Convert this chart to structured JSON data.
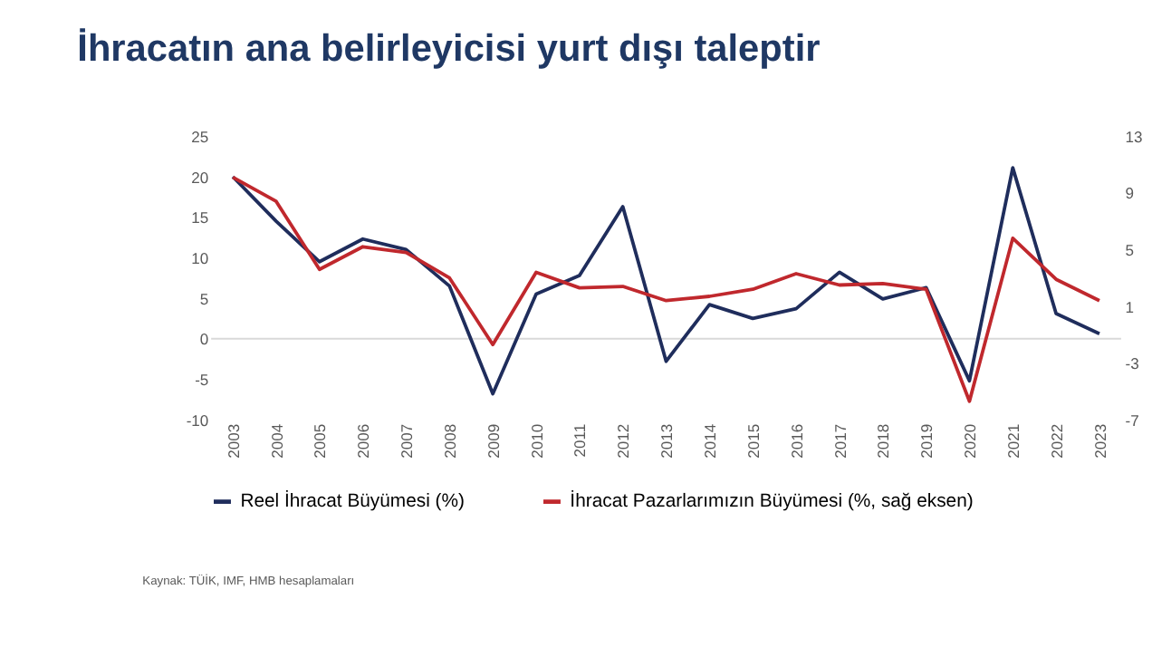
{
  "chart_data": {
    "type": "line",
    "title": "İhracatın ana belirleyicisi yurt dışı taleptir",
    "categories": [
      "2003",
      "2004",
      "2005",
      "2006",
      "2007",
      "2008",
      "2009",
      "2010",
      "2011",
      "2012",
      "2013",
      "2014",
      "2015",
      "2016",
      "2017",
      "2018",
      "2019",
      "2020",
      "2021",
      "2022",
      "2023"
    ],
    "series": [
      {
        "name": "Reel İhracat Büyümesi (%)",
        "color": "#1f2d5c",
        "values": [
          20,
          14.5,
          9.5,
          12.3,
          11,
          6.5,
          -6.8,
          5.5,
          7.8,
          16.3,
          -2.8,
          4.2,
          2.5,
          3.7,
          8.2,
          4.9,
          6.3,
          -5.2,
          21.1,
          3.1,
          0.6
        ]
      },
      {
        "name": "İhracat Pazarlarımızın Büyümesi (%, sağ eksen)",
        "color": "#c0282d",
        "axis": "y2",
        "values": [
          10.1,
          8.4,
          3.6,
          5.2,
          4.8,
          3.0,
          -1.7,
          3.4,
          2.3,
          2.4,
          1.4,
          1.7,
          2.2,
          3.3,
          2.5,
          2.6,
          2.2,
          -5.7,
          5.8,
          2.9,
          1.4
        ]
      }
    ],
    "ylim": [
      -10,
      25
    ],
    "yticks": [
      -10,
      -5,
      0,
      5,
      10,
      15,
      20,
      25
    ],
    "y2lim": [
      -7,
      13
    ],
    "y2ticks": [
      -7,
      -3,
      1,
      5,
      9,
      13
    ],
    "ref_lines": [
      {
        "axis": "y",
        "value": 0,
        "color": "#d9d9d9"
      }
    ],
    "grid": false,
    "legend": "bottom",
    "marker": "none",
    "line_style": "solid",
    "annotations": [
      "Kaynak: TÜİK, IMF, HMB hesaplamaları"
    ]
  }
}
